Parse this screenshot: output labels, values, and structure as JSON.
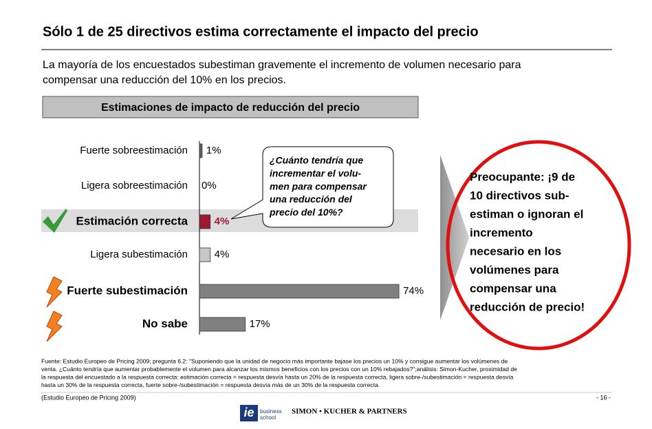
{
  "chart_data": {
    "type": "hbar",
    "title": "Sólo 1 de 25 directivos estima correctamente el impacto del precio",
    "subtitle": [
      "La mayoría de los encuestados subestiman gravemente el incremento de volumen necesario para",
      "compensar una reducción del 10% en los precios."
    ],
    "chart_title": "Estimaciones de impacto de reducción del precio",
    "categories": [
      "Fuerte sobreestimación",
      "Ligera sobreestimación",
      "Estimación correcta",
      "Ligera subestimación",
      "Fuerte subestimación",
      "No sabe"
    ],
    "values": [
      1,
      0,
      4,
      4,
      74,
      17
    ],
    "value_labels": [
      "1%",
      "0%",
      "4%",
      "4%",
      "74%",
      "17%"
    ],
    "colors": [
      "#606060",
      "#808080",
      "#9b1b30",
      "#c8c8c8",
      "#808080",
      "#808080"
    ],
    "callout": [
      "¿Cuánto tendría que",
      "incrementar el volu-",
      "men para compensar",
      "una reducción del",
      "precio del 10%?"
    ],
    "conclusion": [
      "Preocupante: ¡9 de",
      "10 directivos sub-",
      "estiman o ignoran el",
      "incremento",
      "necesario en los",
      "volúmenes para",
      "compensar una",
      "reducción de precio!"
    ],
    "footnote": [
      "Fuente: Estudio Europeo de Pricing 2009; pregunta 6.2: \"Suponiendo que la unidad de negocio más importante bajase los precios un 10% y consigue aumentar los volúmenes de",
      "venta. ¿Cuánto tendría que aumentar probablemente el volumen para alcanzar los mismos beneficios con los precios con un 10% rebajados?\";análisis: Simon-Kucher, proximidad de",
      "la respuesta del encuestado a la respuesta correcta: estimación correcta = respuesta desvía hasta un 20% de la respuesta correcta, ligera sobre-/subestimación = respuesta desvía",
      "hasta un 30% de la respuesta correcta, fuerte sobre-/subestimación = respuesta desvía más de un 30% de la respuesta correcta."
    ],
    "source": "(Estudio Europeo de Pricing 2009)",
    "page": "- 16 -",
    "logo_ie": "ie",
    "logo_school": [
      "business",
      "school"
    ],
    "logo_partner": "SIMON • KUCHER & PARTNERS"
  }
}
